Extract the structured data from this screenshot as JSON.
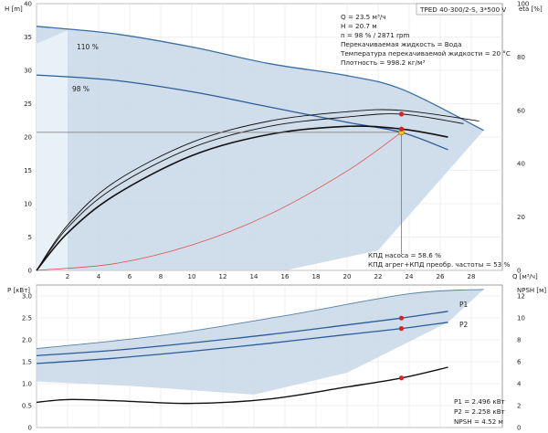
{
  "chart_data": [
    {
      "type": "line",
      "title": "TPED 40-300/2-S, 3*500 V",
      "xlabel": "Q [м³/ч]",
      "ylabel_left": "H [m]",
      "ylabel_right": "eta [%]",
      "xlim": [
        0,
        30
      ],
      "ylim_left": [
        0,
        40
      ],
      "ylim_right": [
        0,
        100
      ],
      "grid": true,
      "x_ticks": [
        "0",
        "2",
        "4",
        "6",
        "8",
        "10",
        "12",
        "14",
        "16",
        "18",
        "20",
        "22",
        "24",
        "26",
        "28"
      ],
      "y_ticks_left": [
        "0",
        "5",
        "10",
        "15",
        "20",
        "25",
        "30",
        "35",
        "40"
      ],
      "y_ticks_right": [
        "0",
        "20",
        "40",
        "60",
        "80",
        "100"
      ],
      "operating_point": {
        "Q": 23.5,
        "H": 20.7
      },
      "info_lines": [
        "Q = 23.5 м³/ч",
        "H = 20.7 м",
        "n = 98 % / 2871 rpm",
        "Перекачиваемая жидкость = Вода",
        "Температура перекачиваемой жидкости = 20 °C",
        "Плотность = 998.2 кг/м³"
      ],
      "efficiency_lines": [
        "КПД насоса = 58.6 %",
        "КПД агрег+КПД преобр. частоты = 53 %"
      ],
      "series": [
        {
          "name": "110 %",
          "axis": "H",
          "color": "#3a6ea5",
          "x": [
            0,
            5,
            10,
            15,
            20,
            23.6,
            28.8
          ],
          "y": [
            36.6,
            35.5,
            33.5,
            31,
            29.2,
            27.1,
            21
          ]
        },
        {
          "name": "98 %",
          "axis": "H",
          "color": "#2a5d98",
          "x": [
            0,
            5,
            10,
            15,
            20,
            23.5,
            26.5
          ],
          "y": [
            29.3,
            28.5,
            26.8,
            24.5,
            22.2,
            20.7,
            18.1
          ]
        },
        {
          "axis": "H",
          "color": "#e05050",
          "x": [
            0,
            5,
            10,
            15,
            20,
            23.5
          ],
          "y": [
            0,
            1.0,
            3.8,
            8.4,
            14.9,
            20.7
          ]
        },
        {
          "axis": "eta",
          "color": "#111111",
          "x": [
            0,
            2,
            5,
            10,
            15,
            20,
            23.5,
            26.5
          ],
          "y": [
            0,
            14,
            28,
            43,
            51,
            54,
            53,
            50
          ]
        },
        {
          "axis": "eta",
          "color": "#111111",
          "x": [
            0,
            2,
            5,
            10,
            15,
            20,
            23.5,
            27.5
          ],
          "y": [
            0,
            16,
            31,
            46,
            54,
            57.5,
            58.6,
            55
          ]
        },
        {
          "axis": "eta",
          "color": "#111111",
          "x": [
            0,
            2,
            5,
            10,
            15,
            20,
            23.5,
            28.5
          ],
          "y": [
            0,
            17,
            33,
            48,
            56,
            59.5,
            60,
            56
          ]
        }
      ]
    },
    {
      "type": "line",
      "ylabel_left": "P [кВт]",
      "ylabel_right": "NPSH [м]",
      "xlim": [
        0,
        30
      ],
      "ylim_left": [
        0,
        3.25
      ],
      "ylim_right": [
        0,
        13
      ],
      "grid": true,
      "y_ticks_left": [
        "0",
        "0.5",
        "1.0",
        "1.5",
        "2.0",
        "2.5",
        "3.0"
      ],
      "y_ticks_right": [
        "0",
        "2",
        "4",
        "6",
        "8",
        "10",
        "12"
      ],
      "info_lines": [
        "P1 = 2.496 кВт",
        "P2 = 2.258 кВт",
        "NPSH = 4.52 м"
      ],
      "series": [
        {
          "name": "P1",
          "axis": "P",
          "color": "#2a5d98",
          "x": [
            0,
            5,
            10,
            15,
            20,
            23.5,
            26.5
          ],
          "y": [
            1.64,
            1.76,
            1.93,
            2.12,
            2.34,
            2.496,
            2.65
          ]
        },
        {
          "name": "P2",
          "axis": "P",
          "color": "#2a5d98",
          "x": [
            0,
            5,
            10,
            15,
            20,
            23.5,
            26.5
          ],
          "y": [
            1.46,
            1.58,
            1.74,
            1.92,
            2.12,
            2.258,
            2.4
          ]
        },
        {
          "axis": "NPSH",
          "color": "#111111",
          "x": [
            0,
            2,
            5,
            10,
            15,
            20,
            23.5,
            26.5
          ],
          "y": [
            2.3,
            2.55,
            2.45,
            2.2,
            2.6,
            3.7,
            4.52,
            5.5
          ]
        }
      ]
    }
  ]
}
